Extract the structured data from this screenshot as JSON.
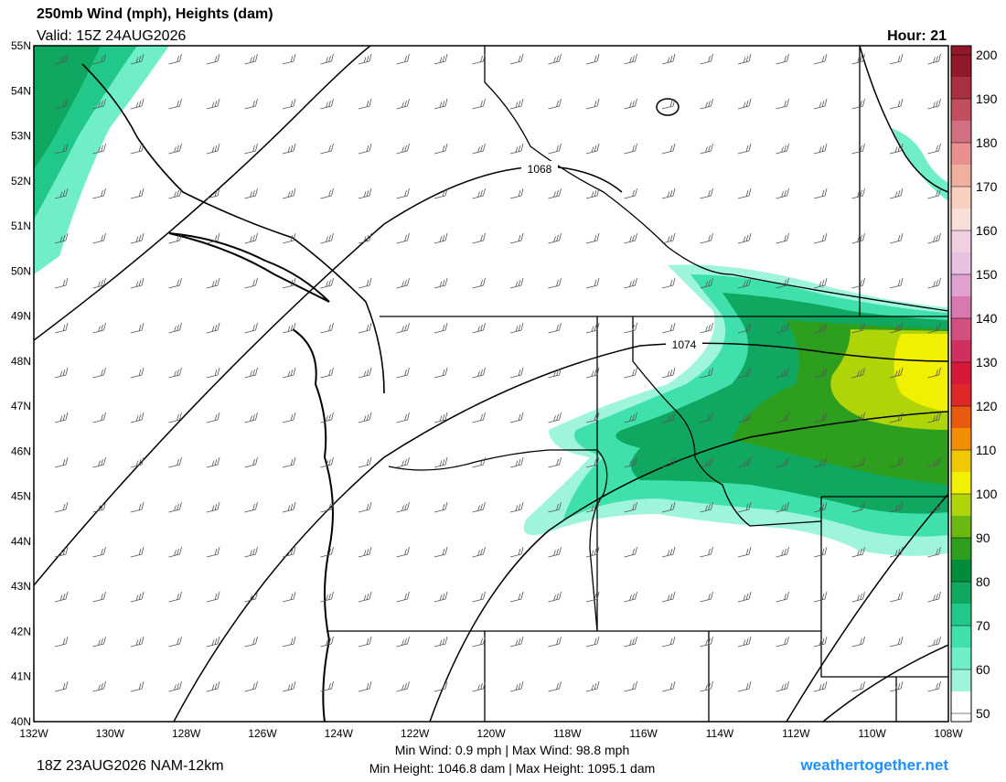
{
  "header": {
    "title": "250mb Wind (mph), Heights (dam)",
    "valid": "Valid: 15Z 24AUG2026",
    "hour": "Hour: 21"
  },
  "map": {
    "lat_labels": [
      "55N",
      "54N",
      "53N",
      "52N",
      "51N",
      "50N",
      "49N",
      "48N",
      "47N",
      "46N",
      "45N",
      "44N",
      "43N",
      "42N",
      "41N",
      "40N"
    ],
    "lon_labels": [
      "132W",
      "130W",
      "128W",
      "126W",
      "124W",
      "122W",
      "120W",
      "118W",
      "116W",
      "114W",
      "112W",
      "110W",
      "108W"
    ],
    "contour_labels": [
      "1068",
      "1074"
    ]
  },
  "colorbar": {
    "ticks": [
      200,
      190,
      180,
      170,
      160,
      150,
      140,
      130,
      120,
      110,
      100,
      90,
      80,
      70,
      60,
      50
    ],
    "colors": [
      "#ffffff",
      "#9ff5dc",
      "#6feec8",
      "#3fe0ac",
      "#22c88a",
      "#10a860",
      "#008c3a",
      "#2e9e1e",
      "#6cb812",
      "#b0d40a",
      "#f0f000",
      "#f0c800",
      "#f09000",
      "#e85a10",
      "#e02828",
      "#d8183a",
      "#d03060",
      "#d05080",
      "#d878b0",
      "#e0a0d0",
      "#e8c0e0",
      "#f0d0e0",
      "#f8e0d8",
      "#f8d0c0",
      "#f0b0a0",
      "#e89090",
      "#d07080",
      "#c05060",
      "#a83040",
      "#901828"
    ]
  },
  "footer": {
    "run": "18Z 23AUG2026 NAM-12km",
    "wind": "Min Wind:  0.9 mph | Max Wind:  98.8 mph",
    "height": "Min Height: 1046.8 dam | Max Height: 1095.1 dam",
    "site": "weathertogether.net"
  }
}
